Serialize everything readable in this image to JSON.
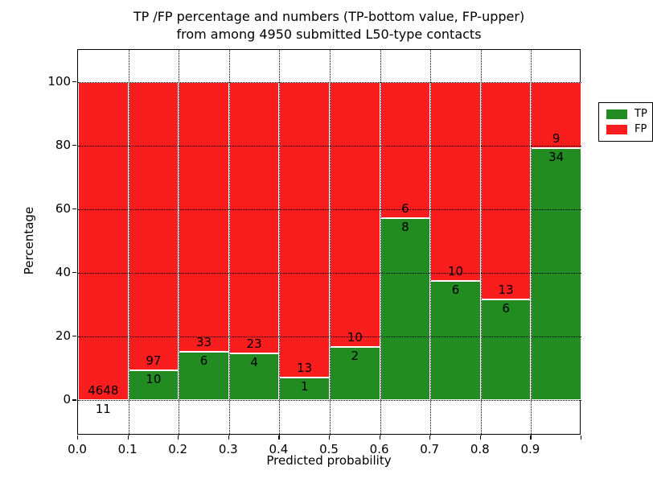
{
  "title_line1": "TP /FP percentage and numbers (TP-bottom value, FP-upper)",
  "title_line2": "from among 4950 submitted L50-type contacts",
  "colors": {
    "tp_green": "#228b22",
    "fp_red": "#fa1d1d",
    "grid": "#000000",
    "background": "#ffffff"
  },
  "chart_data": {
    "type": "bar",
    "stacked": true,
    "normalized_to_percent": 100,
    "title": "TP /FP percentage and numbers (TP-bottom value, FP-upper)\nfrom among 4950 submitted L50-type contacts",
    "xlabel": "Predicted probability",
    "ylabel": "Percentage",
    "bin_edges": [
      0.0,
      0.1,
      0.2,
      0.3,
      0.4,
      0.5,
      0.6,
      0.7,
      0.8,
      0.9,
      1.0
    ],
    "xtick_labels": [
      "0.0",
      "0.1",
      "0.2",
      "0.3",
      "0.4",
      "0.5",
      "0.6",
      "0.7",
      "0.8",
      "0.9"
    ],
    "ytick_values": [
      0,
      20,
      40,
      60,
      80,
      100
    ],
    "xlim": [
      0.0,
      1.0
    ],
    "ylim": [
      -11,
      110
    ],
    "grid": {
      "visible": true,
      "style": "dotted",
      "color": "#000000"
    },
    "series": [
      {
        "name": "TP",
        "color": "#228b22",
        "counts": [
          11,
          10,
          6,
          4,
          1,
          2,
          8,
          6,
          6,
          34
        ],
        "pct": [
          0.24,
          9.35,
          15.38,
          14.81,
          7.14,
          16.67,
          57.14,
          37.5,
          31.58,
          79.07
        ]
      },
      {
        "name": "FP",
        "color": "#fa1d1d",
        "counts": [
          4648,
          97,
          33,
          23,
          13,
          10,
          6,
          10,
          13,
          9
        ],
        "pct": [
          99.76,
          90.65,
          84.62,
          85.19,
          92.86,
          83.33,
          42.86,
          62.5,
          68.42,
          20.93
        ]
      }
    ],
    "legend": {
      "position": "upper right",
      "entries": [
        "TP",
        "FP"
      ]
    }
  }
}
